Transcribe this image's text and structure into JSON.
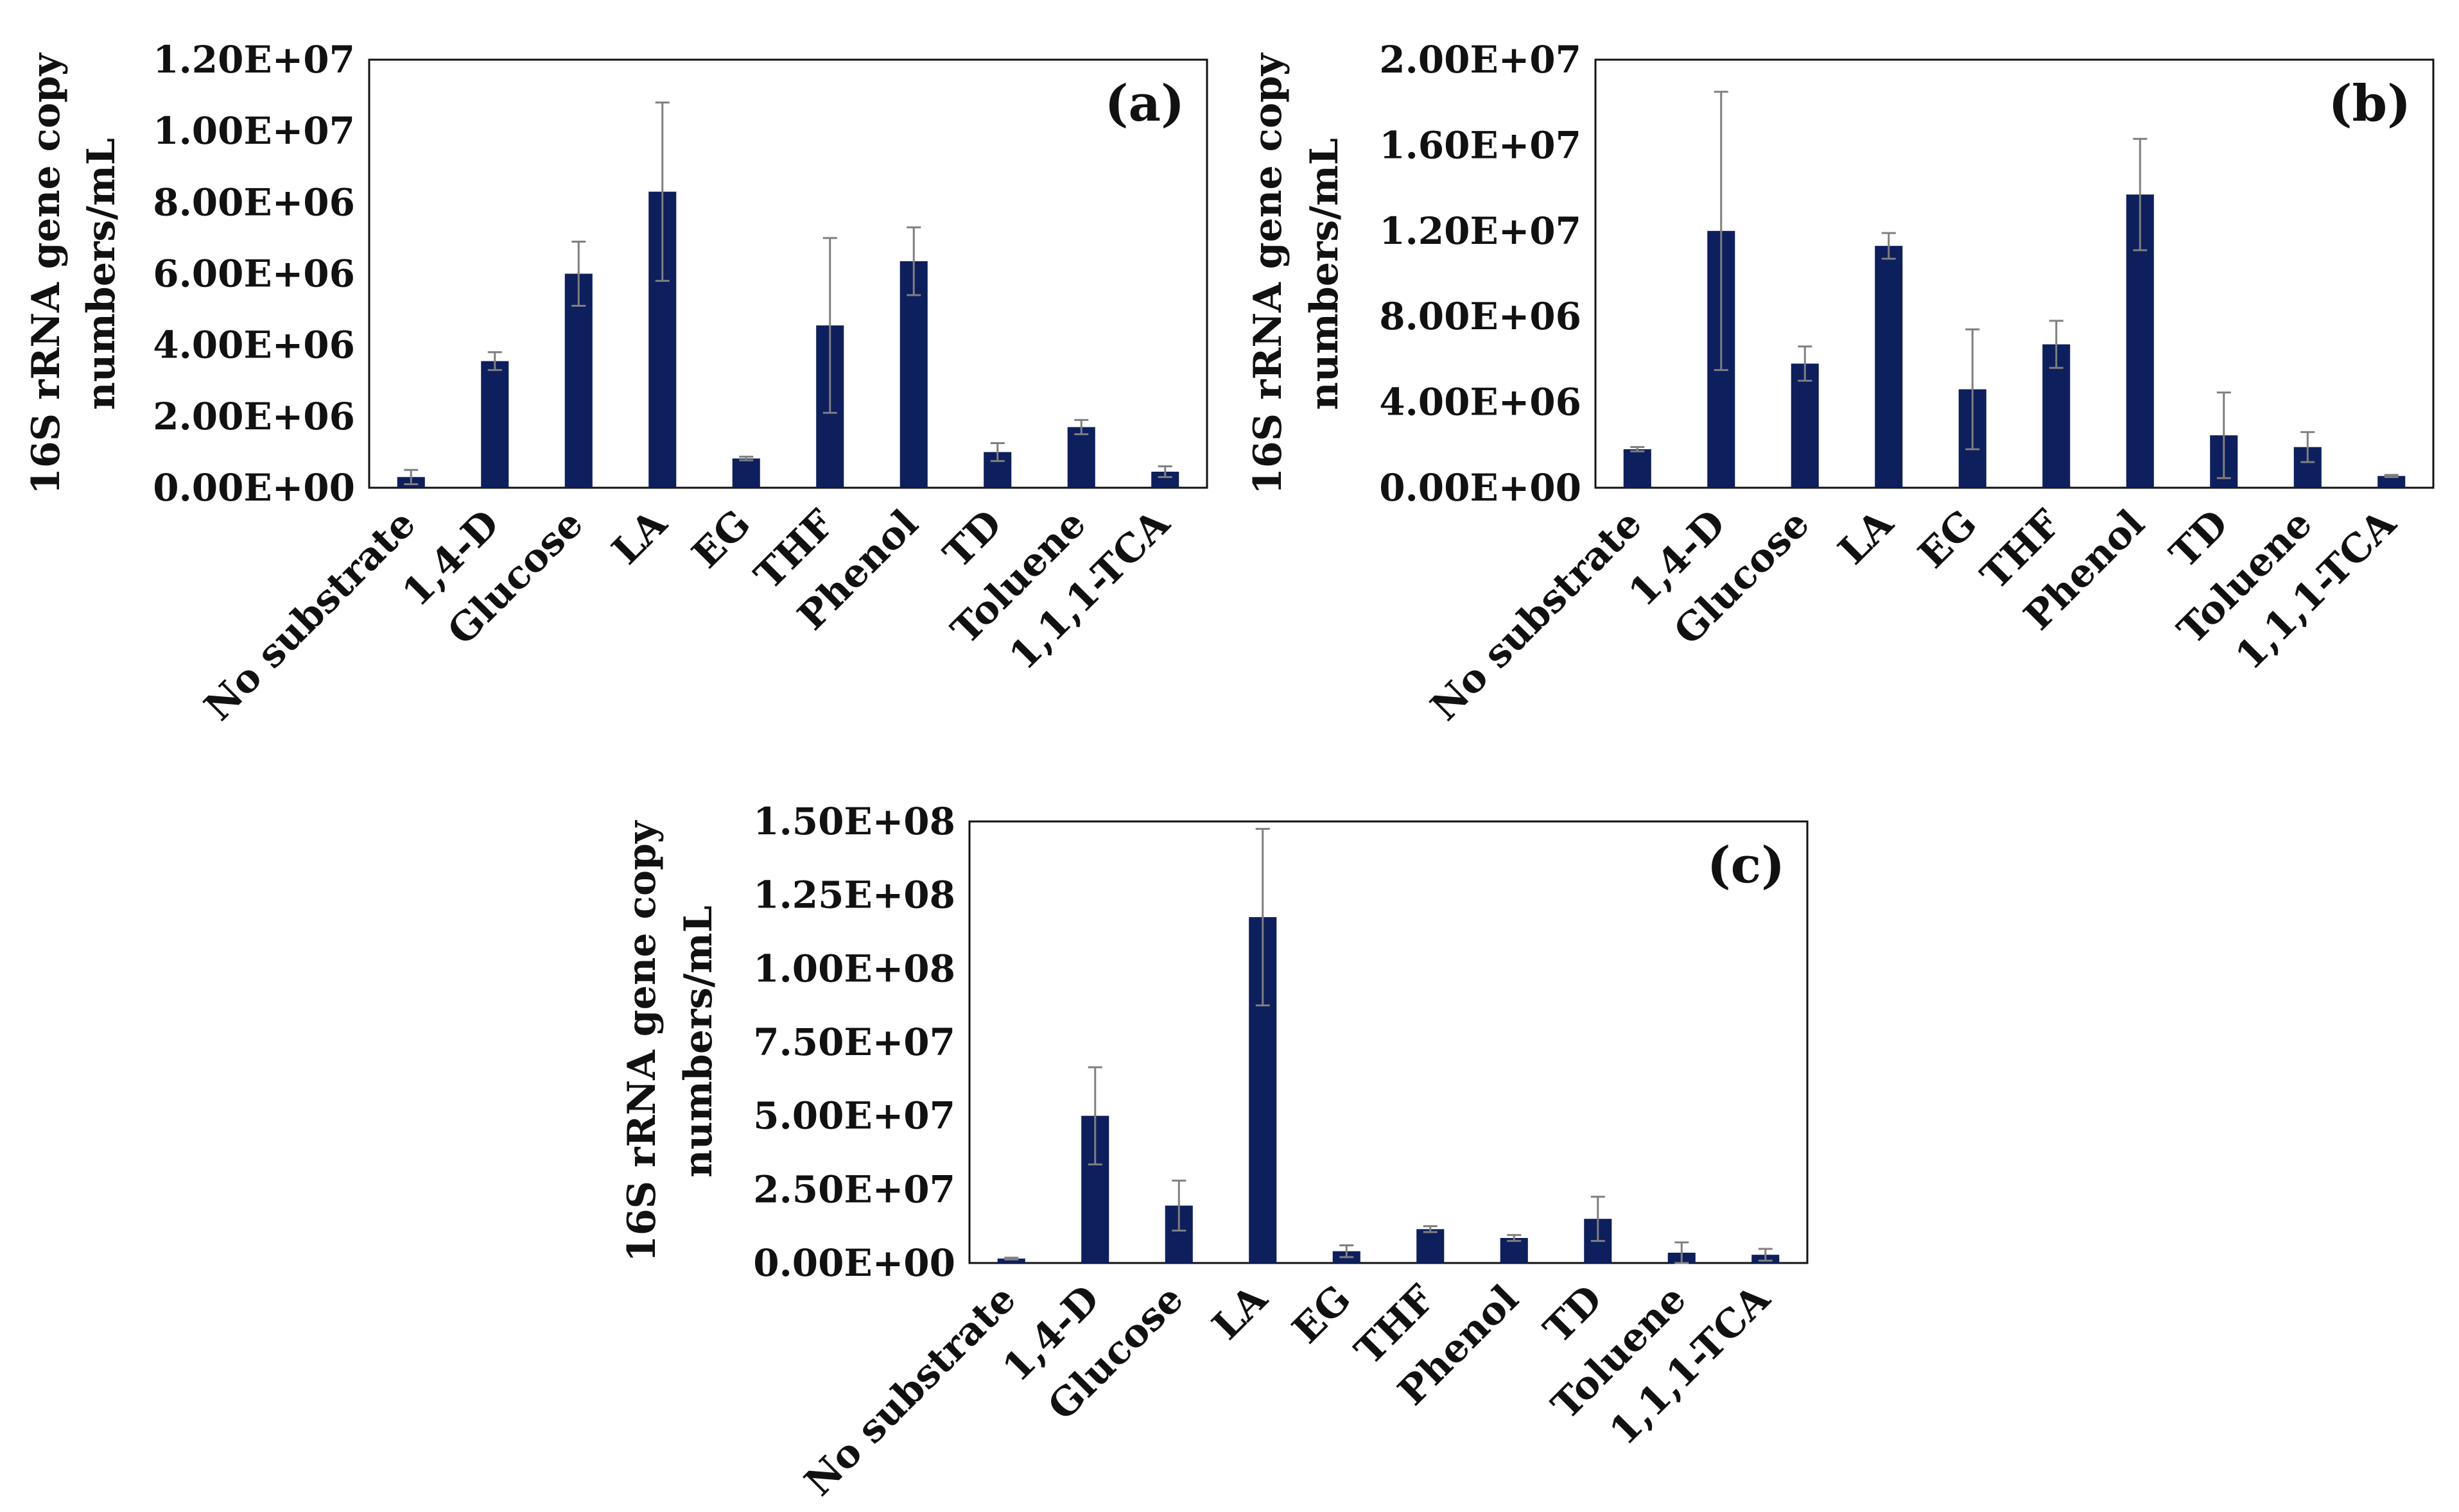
{
  "figure": {
    "bar_color": "#0d1f5c",
    "error_color": "#7f7f7f",
    "axis_color": "#111111"
  },
  "chart_data": [
    {
      "type": "bar",
      "panel_label": "(a)",
      "ylabel_lines": [
        "16S rRNA gene copy",
        "numbers/mL"
      ],
      "categories": [
        "No substrate",
        "1,4-D",
        "Glucose",
        "LA",
        "EG",
        "THF",
        "Phenol",
        "TD",
        "Toluene",
        "1,1,1-TCA"
      ],
      "values": [
        300000,
        3550000,
        6000000,
        8300000,
        820000,
        4550000,
        6350000,
        1000000,
        1700000,
        450000
      ],
      "errors": [
        200000,
        250000,
        900000,
        2500000,
        50000,
        2450000,
        950000,
        250000,
        200000,
        150000
      ],
      "ylim": [
        0,
        12000000
      ],
      "yticks": [
        "0.00E+00",
        "2.00E+06",
        "4.00E+06",
        "6.00E+06",
        "8.00E+06",
        "1.00E+07",
        "1.20E+07"
      ]
    },
    {
      "type": "bar",
      "panel_label": "(b)",
      "ylabel_lines": [
        "16S rRNA gene copy",
        "numbers/mL"
      ],
      "categories": [
        "No substrate",
        "1,4-D",
        "Glucose",
        "LA",
        "EG",
        "THF",
        "Phenol",
        "TD",
        "Toluene",
        "1,1,1-TCA"
      ],
      "values": [
        1800000,
        12000000,
        5800000,
        11300000,
        4600000,
        6700000,
        13700000,
        2450000,
        1900000,
        550000
      ],
      "errors": [
        100000,
        6500000,
        800000,
        600000,
        2800000,
        1100000,
        2600000,
        2000000,
        700000,
        50000
      ],
      "ylim": [
        0,
        20000000
      ],
      "yticks": [
        "0.00E+00",
        "4.00E+06",
        "8.00E+06",
        "1.20E+07",
        "1.60E+07",
        "2.00E+07"
      ]
    },
    {
      "type": "bar",
      "panel_label": "(c)",
      "ylabel_lines": [
        "16S rRNA gene copy",
        "numbers/mL"
      ],
      "categories": [
        "No substrate",
        "1,4-D",
        "Glucose",
        "LA",
        "EG",
        "THF",
        "Phenol",
        "TD",
        "Toluene",
        "1,1,1-TCA"
      ],
      "values": [
        1500000,
        50000000,
        19500000,
        117500000,
        4000000,
        11500000,
        8500000,
        15000000,
        3500000,
        2800000
      ],
      "errors": [
        300000,
        16500000,
        8500000,
        30000000,
        2000000,
        1000000,
        1000000,
        7500000,
        3500000,
        2000000
      ],
      "ylim": [
        0,
        150000000
      ],
      "yticks": [
        "0.00E+00",
        "2.50E+07",
        "5.00E+07",
        "7.50E+07",
        "1.00E+08",
        "1.25E+08",
        "1.50E+08"
      ]
    }
  ]
}
